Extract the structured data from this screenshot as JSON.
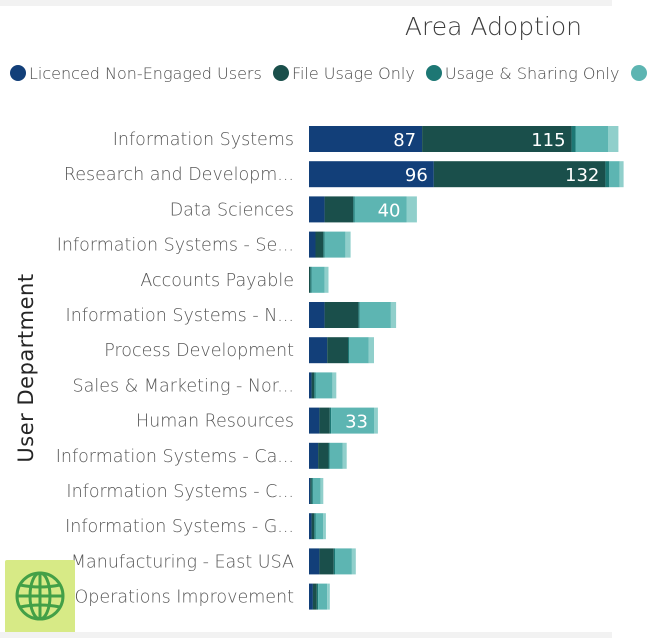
{
  "chart_data": {
    "type": "bar",
    "orientation": "horizontal",
    "stacked": true,
    "title": "Area Adoption",
    "ylabel": "User Department",
    "xlabel": "",
    "legend_position": "top-left",
    "xlim": [
      0,
      305
    ],
    "categories": [
      "Information Systems",
      "Research and Developm...",
      "Data Sciences",
      "Information Systems - Se...",
      "Accounts Payable",
      "Information Systems - N...",
      "Process Development",
      "Sales & Marketing - Nor...",
      "Human Resources",
      "Information Systems - Ca...",
      "Information Systems - C...",
      "Information Systems - G...",
      "Manufacturing - East USA",
      "Operations Improvement"
    ],
    "series": [
      {
        "name": "Licenced Non-Engaged Users",
        "color": "#123f79",
        "values": [
          87,
          96,
          12,
          5,
          0,
          12,
          14,
          2,
          8,
          7,
          1,
          2,
          8,
          3
        ],
        "labels": [
          "87",
          "96",
          "",
          "",
          "",
          "",
          "",
          "",
          "",
          "",
          "",
          "",
          "",
          ""
        ]
      },
      {
        "name": "File Usage Only",
        "color": "#1a4f4b",
        "values": [
          115,
          132,
          22,
          6,
          1,
          26,
          16,
          2,
          8,
          8,
          1,
          2,
          11,
          3
        ],
        "labels": [
          "115",
          "132",
          "",
          "",
          "",
          "",
          "",
          "",
          "",
          "",
          "",
          "",
          "",
          ""
        ]
      },
      {
        "name": "Usage & Sharing Only",
        "color": "#1d7774",
        "values": [
          3,
          3,
          1,
          1,
          1,
          1,
          1,
          1,
          1,
          1,
          1,
          1,
          1,
          1
        ],
        "labels": [
          "",
          "",
          "",
          "",
          "",
          "",
          "",
          "",
          "",
          "",
          "",
          "",
          "",
          ""
        ]
      },
      {
        "name": "",
        "color": "#5db5b2",
        "values": [
          25,
          8,
          40,
          16,
          10,
          24,
          15,
          13,
          33,
          10,
          6,
          6,
          13,
          7
        ],
        "labels": [
          "",
          "",
          "40",
          "",
          "",
          "",
          "",
          "",
          "33",
          "",
          "",
          "",
          "",
          ""
        ]
      },
      {
        "name": "",
        "color": "#90cfcb",
        "values": [
          8,
          3,
          8,
          4,
          3,
          4,
          4,
          3,
          3,
          3,
          2,
          2,
          3,
          2
        ],
        "labels": [
          "",
          "",
          "",
          "",
          "",
          "",
          "",
          "",
          "",
          "",
          "",
          "",
          "",
          ""
        ]
      }
    ]
  }
}
